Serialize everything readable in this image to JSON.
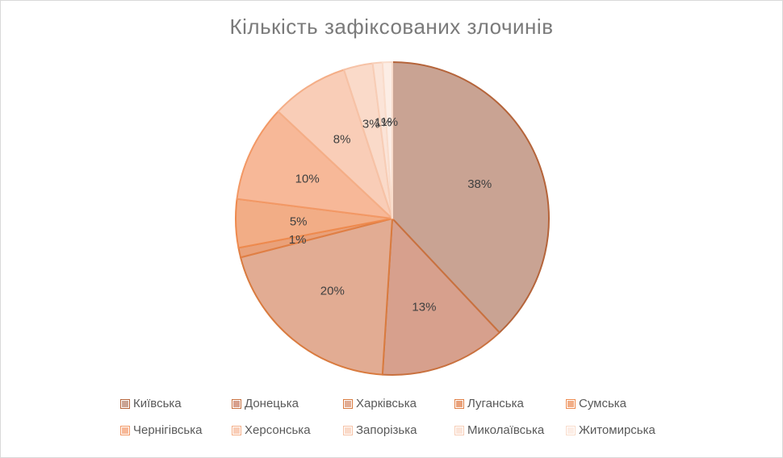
{
  "chart_data": {
    "type": "pie",
    "title": "Кількість зафіксованих злочинів",
    "slices": [
      {
        "name": "Київська",
        "value": 38,
        "label": "38%",
        "color": "#C9A393",
        "edge": "#B5643A"
      },
      {
        "name": "Донецька",
        "value": 13,
        "label": "13%",
        "color": "#D7A08D",
        "edge": "#C9713F"
      },
      {
        "name": "Харківська",
        "value": 20,
        "label": "20%",
        "color": "#E2AC93",
        "edge": "#D97B3F"
      },
      {
        "name": "Луганська",
        "value": 1,
        "label": "1%",
        "color": "#E9A17A",
        "edge": "#E07F45"
      },
      {
        "name": "Сумська",
        "value": 5,
        "label": "5%",
        "color": "#F2AD86",
        "edge": "#EE8A4E"
      },
      {
        "name": "Чернігівська",
        "value": 10,
        "label": "10%",
        "color": "#F7B898",
        "edge": "#F29865"
      },
      {
        "name": "Херсонська",
        "value": 8,
        "label": "8%",
        "color": "#F9CDB7",
        "edge": "#F4AE87"
      },
      {
        "name": "Запорізька",
        "value": 3,
        "label": "3%",
        "color": "#FADAC9",
        "edge": "#F6C2A6"
      },
      {
        "name": "Миколаївська",
        "value": 1,
        "label": "1%",
        "color": "#FBE4D8",
        "edge": "#F7CDB6"
      },
      {
        "name": "Житомирська",
        "value": 1,
        "label": "1%",
        "color": "#FCEDE5",
        "edge": "#F9DCCB"
      }
    ],
    "legend_position": "bottom"
  }
}
